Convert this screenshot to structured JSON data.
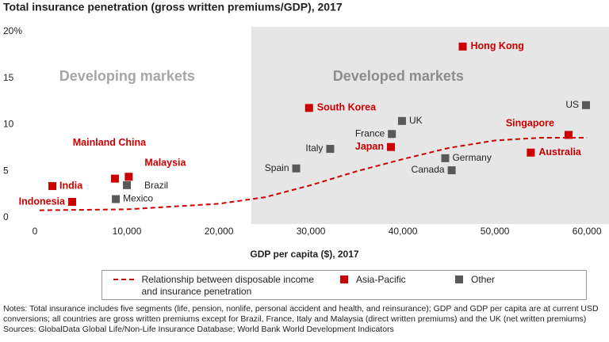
{
  "chart_data": {
    "type": "scatter",
    "title": "Total insurance penetration (gross written premiums/GDP), 2017",
    "x_label": "GDP per capita ($), 2017",
    "xlim": [
      0,
      62400
    ],
    "ylim": [
      0,
      20
    ],
    "xticks": [
      0,
      {
        "value": 10000,
        "label": "10,000"
      },
      {
        "value": 20000,
        "label": "20,000"
      },
      {
        "value": 30000,
        "label": "30,000"
      },
      {
        "value": 40000,
        "label": "40,000"
      },
      {
        "value": 50000,
        "label": "50,000"
      },
      {
        "value": 60000,
        "label": "60,000"
      }
    ],
    "yticks": [
      0,
      5,
      10,
      15,
      {
        "value": 20,
        "label": "20%"
      }
    ],
    "regions": [
      {
        "label": "Developing markets",
        "xrange": [
          0,
          23500
        ],
        "color": "#ffffff",
        "text_color": "#a6a6a6"
      },
      {
        "label": "Developed markets",
        "xrange": [
          23500,
          62400
        ],
        "color": "#e6e6e6",
        "text_color": "#8c8c8c"
      }
    ],
    "series": [
      {
        "name": "Relationship between disposable income and insurance penetration",
        "type": "line",
        "style": "dashed",
        "color": "#cc0000",
        "x": [
          500,
          10000,
          20000,
          25000,
          30000,
          35000,
          40000,
          45000,
          50000,
          55000,
          60000
        ],
        "values": [
          0.8,
          0.9,
          1.5,
          2.2,
          3.5,
          5.0,
          6.3,
          7.5,
          8.3,
          8.6,
          8.6
        ]
      },
      {
        "name": "Asia-Pacific",
        "type": "scatter",
        "color": "#cc0000",
        "labels": [
          "Indonesia",
          "India",
          "Mainland China",
          "Malaysia",
          "South Korea",
          "Hong Kong",
          "Japan",
          "Singapore",
          "Australia"
        ],
        "x": [
          4050,
          1900,
          8700,
          10200,
          29800,
          46500,
          38700,
          58000,
          53900
        ],
        "values": [
          1.7,
          3.4,
          4.2,
          4.4,
          11.8,
          18.4,
          7.6,
          8.9,
          7.0
        ]
      },
      {
        "name": "Other",
        "type": "scatter",
        "color": "#595959",
        "labels": [
          "Brazil",
          "Mexico",
          "Spain",
          "Italy",
          "France",
          "UK",
          "Germany",
          "Canada",
          "US"
        ],
        "x": [
          10000,
          8800,
          28400,
          32100,
          38800,
          39900,
          44600,
          45300,
          59900
        ],
        "values": [
          3.5,
          2.0,
          5.3,
          7.4,
          9.0,
          10.4,
          6.4,
          5.1,
          12.1
        ]
      }
    ],
    "notes": "Notes: Total insurance includes five segments (life, pension, nonlife, personal accident and health, and reinsurance); GDP and GDP per capita are at current USD conversions; all countries are gross written premiums except for Brazil, France, Italy and Malaysia (direct written premiums) and the UK (net written premiums)",
    "sources": "Sources: GlobalData Global Life/Non-Life Insurance Database; World Bank World Development Indicators"
  }
}
